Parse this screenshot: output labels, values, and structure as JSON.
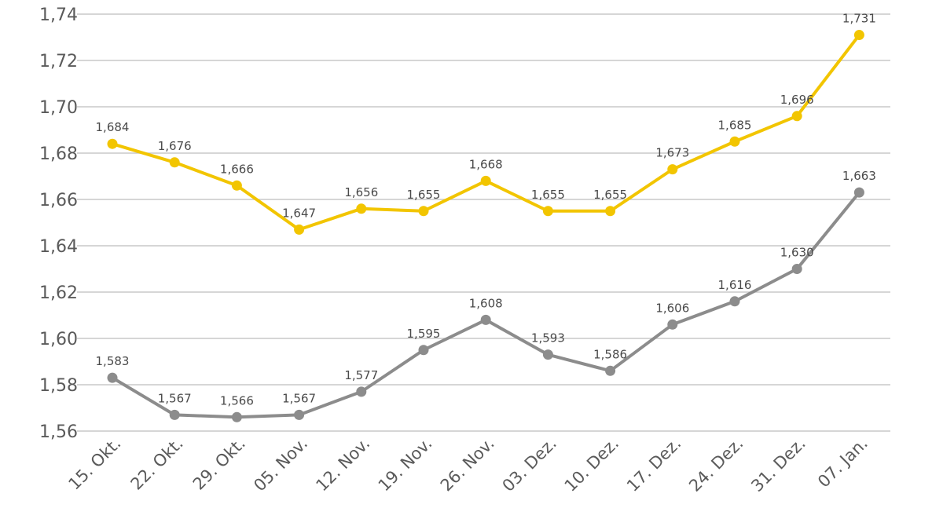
{
  "chart_data": {
    "type": "line",
    "title": "",
    "xlabel": "",
    "ylabel": "",
    "categories": [
      "15. Okt.",
      "22. Okt.",
      "29. Okt.",
      "05. Nov.",
      "12. Nov.",
      "19. Nov.",
      "26. Nov.",
      "03. Dez.",
      "10. Dez.",
      "17. Dez.",
      "24. Dez.",
      "31. Dez.",
      "07. Jan."
    ],
    "ylim": [
      1.56,
      1.74
    ],
    "y_ticks": [
      "1,56",
      "1,58",
      "1,60",
      "1,62",
      "1,64",
      "1,66",
      "1,68",
      "1,70",
      "1,72",
      "1,74"
    ],
    "grid": true,
    "series": [
      {
        "name": "series-yellow",
        "color": "#f2c500",
        "values": [
          1.684,
          1.676,
          1.666,
          1.647,
          1.656,
          1.655,
          1.668,
          1.655,
          1.655,
          1.673,
          1.685,
          1.696,
          1.731
        ],
        "labels": [
          "1,684",
          "1,676",
          "1,666",
          "1,647",
          "1,656",
          "1,655",
          "1,668",
          "1,655",
          "1,655",
          "1,673",
          "1,685",
          "1,696",
          "1,731"
        ]
      },
      {
        "name": "series-gray",
        "color": "#8c8c8c",
        "values": [
          1.583,
          1.567,
          1.566,
          1.567,
          1.577,
          1.595,
          1.608,
          1.593,
          1.586,
          1.606,
          1.616,
          1.63,
          1.663
        ],
        "labels": [
          "1,583",
          "1,567",
          "1,566",
          "1,567",
          "1,577",
          "1,595",
          "1,608",
          "1,593",
          "1,586",
          "1,606",
          "1,616",
          "1,630",
          "1,663"
        ]
      }
    ]
  }
}
